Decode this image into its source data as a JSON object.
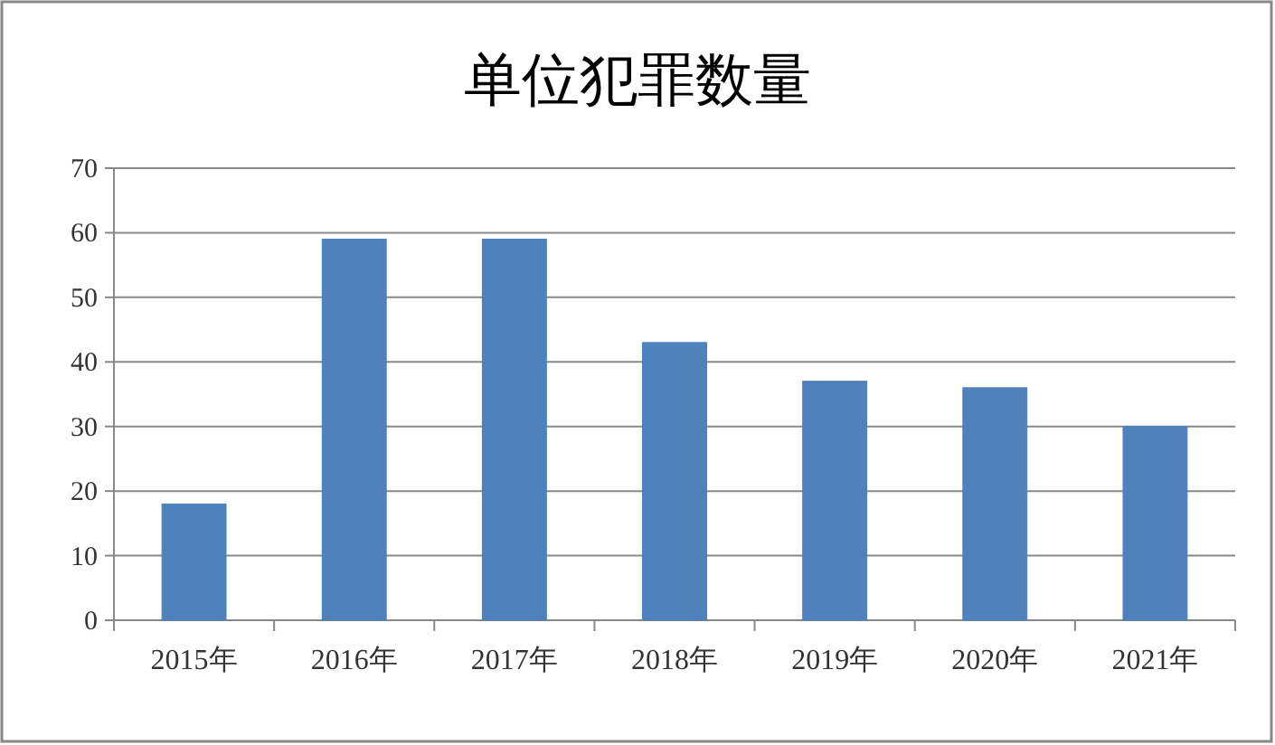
{
  "chart_data": {
    "type": "bar",
    "title": "单位犯罪数量",
    "categories": [
      "2015年",
      "2016年",
      "2017年",
      "2018年",
      "2019年",
      "2020年",
      "2021年"
    ],
    "values": [
      18,
      59,
      59,
      43,
      37,
      36,
      30
    ],
    "color": "#4f81bd",
    "ylim": [
      0,
      70
    ],
    "yticks": [
      0,
      10,
      20,
      30,
      40,
      50,
      60,
      70
    ],
    "grid": "y"
  }
}
